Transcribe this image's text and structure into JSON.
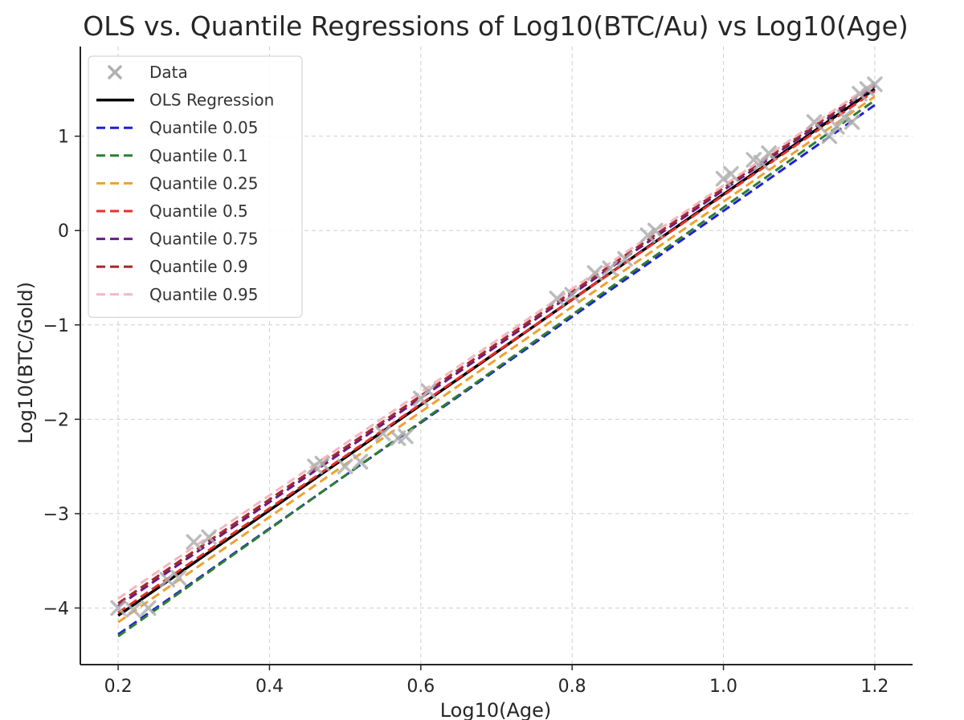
{
  "chart_data": {
    "type": "line",
    "title": "OLS vs. Quantile Regressions of Log10(BTC/Au) vs Log10(Age)",
    "xlabel": "Log10(Age)",
    "ylabel": "Log10(BTC/Gold)",
    "xlim": [
      0.15,
      1.25
    ],
    "ylim": [
      -4.6,
      1.95
    ],
    "xticks": [
      0.2,
      0.4,
      0.6,
      0.8,
      1.0,
      1.2
    ],
    "xtick_labels": [
      "0.2",
      "0.4",
      "0.6",
      "0.8",
      "1.0",
      "1.2"
    ],
    "yticks": [
      -4,
      -3,
      -2,
      -1,
      0,
      1
    ],
    "ytick_labels": [
      "−4",
      "−3",
      "−2",
      "−1",
      "0",
      "1"
    ],
    "grid": true,
    "legend_position": "top-left",
    "scatter": {
      "name": "Data",
      "marker": "x",
      "color": "#b0b0b0",
      "points": [
        [
          0.2,
          -4.0
        ],
        [
          0.22,
          -4.02
        ],
        [
          0.24,
          -4.0
        ],
        [
          0.265,
          -3.7
        ],
        [
          0.28,
          -3.68
        ],
        [
          0.3,
          -3.3
        ],
        [
          0.32,
          -3.25
        ],
        [
          0.46,
          -2.5
        ],
        [
          0.47,
          -2.47
        ],
        [
          0.5,
          -2.5
        ],
        [
          0.52,
          -2.45
        ],
        [
          0.55,
          -2.15
        ],
        [
          0.57,
          -2.2
        ],
        [
          0.58,
          -2.18
        ],
        [
          0.6,
          -1.78
        ],
        [
          0.61,
          -1.7
        ],
        [
          0.78,
          -0.72
        ],
        [
          0.8,
          -0.68
        ],
        [
          0.83,
          -0.45
        ],
        [
          0.85,
          -0.4
        ],
        [
          0.87,
          -0.3
        ],
        [
          0.9,
          -0.05
        ],
        [
          0.91,
          0.0
        ],
        [
          1.0,
          0.55
        ],
        [
          1.01,
          0.6
        ],
        [
          1.04,
          0.75
        ],
        [
          1.05,
          0.72
        ],
        [
          1.06,
          0.82
        ],
        [
          1.12,
          1.15
        ],
        [
          1.14,
          1.0
        ],
        [
          1.15,
          1.1
        ],
        [
          1.16,
          1.2
        ],
        [
          1.17,
          1.15
        ],
        [
          1.18,
          1.45
        ],
        [
          1.19,
          1.5
        ],
        [
          1.2,
          1.55
        ]
      ]
    },
    "series": [
      {
        "name": "OLS Regression",
        "color": "#000000",
        "dashed": false,
        "x": [
          0.2,
          1.2
        ],
        "y": [
          -4.08,
          1.5
        ]
      },
      {
        "name": "Quantile 0.05",
        "color": "#1f1fd6",
        "dashed": true,
        "x": [
          0.2,
          1.2
        ],
        "y": [
          -4.28,
          1.33
        ]
      },
      {
        "name": "Quantile 0.1",
        "color": "#2e7d32",
        "dashed": true,
        "x": [
          0.2,
          1.2
        ],
        "y": [
          -4.3,
          1.38
        ]
      },
      {
        "name": "Quantile 0.25",
        "color": "#f0a030",
        "dashed": true,
        "x": [
          0.2,
          1.2
        ],
        "y": [
          -4.15,
          1.42
        ]
      },
      {
        "name": "Quantile 0.5",
        "color": "#e8302a",
        "dashed": true,
        "x": [
          0.2,
          1.2
        ],
        "y": [
          -4.05,
          1.48
        ]
      },
      {
        "name": "Quantile 0.75",
        "color": "#6a1a8a",
        "dashed": true,
        "x": [
          0.2,
          1.2
        ],
        "y": [
          -3.98,
          1.53
        ]
      },
      {
        "name": "Quantile 0.9",
        "color": "#a52a2a",
        "dashed": true,
        "x": [
          0.2,
          1.2
        ],
        "y": [
          -3.95,
          1.55
        ]
      },
      {
        "name": "Quantile 0.95",
        "color": "#f4b6c2",
        "dashed": true,
        "x": [
          0.2,
          1.2
        ],
        "y": [
          -3.9,
          1.57
        ]
      }
    ]
  }
}
